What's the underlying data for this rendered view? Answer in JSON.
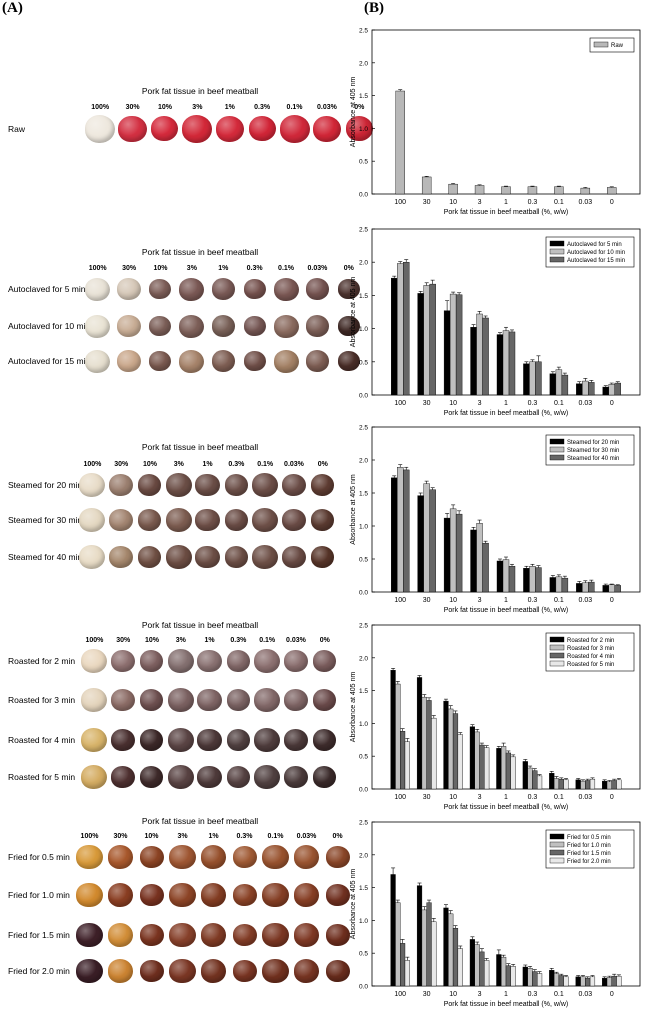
{
  "panel_a_label": "(A)",
  "panel_b_label": "(B)",
  "percent_labels": [
    "100%",
    "30%",
    "10%",
    "3%",
    "1%",
    "0.3%",
    "0.1%",
    "0.03%",
    "0%"
  ],
  "sections": [
    {
      "title": "Pork fat tissue in beef meatball",
      "rows": [
        {
          "label": "Raw",
          "colors": [
            "#eee8de",
            "#d33042",
            "#d52a3c",
            "#d22838",
            "#d42a3b",
            "#d12537",
            "#d0283a",
            "#d12637",
            "#cc2535"
          ]
        }
      ]
    },
    {
      "title": "Pork fat tissue in beef meatball",
      "rows": [
        {
          "label": "Autoclaved for 5 min",
          "colors": [
            "#e8e2d6",
            "#d6c8b8",
            "#7d5e58",
            "#7a5854",
            "#7a5a56",
            "#76524e",
            "#7a5753",
            "#755350",
            "#4e3430"
          ]
        },
        {
          "label": "Autoclaved for 10 min",
          "colors": [
            "#e9e3d4",
            "#c8ad95",
            "#7c5f58",
            "#7d5f58",
            "#786057",
            "#755653",
            "#8a6a5e",
            "#7a5d55",
            "#3e2824"
          ]
        },
        {
          "label": "Autoclaved for 15 min",
          "colors": [
            "#e6dfcf",
            "#caa88c",
            "#7b5a50",
            "#a6836a",
            "#7e5e53",
            "#715049",
            "#a38064",
            "#7d5d53",
            "#4a2e28"
          ]
        }
      ]
    },
    {
      "title": "Pork fat tissue in beef meatball",
      "rows": [
        {
          "label": "Steamed for 20 min",
          "colors": [
            "#e8dcc8",
            "#9c8070",
            "#6a4a42",
            "#6b4e46",
            "#6a4d46",
            "#6c4f48",
            "#6a4c45",
            "#6b4d47",
            "#5e3c32"
          ]
        },
        {
          "label": "Steamed for 30 min",
          "colors": [
            "#e4d8c2",
            "#a48672",
            "#7a5a4e",
            "#7c5c50",
            "#6e4f47",
            "#6a4c45",
            "#6e5048",
            "#6a4b45",
            "#5a3a30"
          ]
        },
        {
          "label": "Steamed for 40 min",
          "colors": [
            "#e8dcc6",
            "#a5876c",
            "#705044",
            "#6b4c42",
            "#6c4e45",
            "#6b4d44",
            "#6d4f46",
            "#684a43",
            "#563428"
          ]
        }
      ]
    },
    {
      "title": "Pork fat tissue in beef meatball",
      "rows": [
        {
          "label": "Roasted for 2 min",
          "colors": [
            "#ead8c0",
            "#8e7070",
            "#7e6060",
            "#847070",
            "#8a7272",
            "#826868",
            "#8c7070",
            "#8a6e6e",
            "#7a5c5c"
          ]
        },
        {
          "label": "Roasted for 3 min",
          "colors": [
            "#e4d4bc",
            "#8c6c66",
            "#6e5050",
            "#7a6060",
            "#7e6464",
            "#7a6262",
            "#826868",
            "#7e6464",
            "#6a4a4a"
          ]
        },
        {
          "label": "Roasted for 4 min",
          "colors": [
            "#d8b46a",
            "#4a3030",
            "#3c2828",
            "#5a4444",
            "#4c3838",
            "#504040",
            "#4e3c3c",
            "#4a3838",
            "#3e2c2c"
          ]
        },
        {
          "label": "Roasted for 5 min",
          "colors": [
            "#d4ac62",
            "#4e3030",
            "#3e2a2a",
            "#584242",
            "#4e3a3a",
            "#564242",
            "#504040",
            "#4a3a3a",
            "#3a2a2a"
          ]
        }
      ]
    },
    {
      "title": "Pork fat tissue in beef meatball",
      "rows": [
        {
          "label": "Fried for 0.5 min",
          "colors": [
            "#d89a3a",
            "#a8582c",
            "#8c4424",
            "#9e5632",
            "#96502c",
            "#a05a34",
            "#98522e",
            "#9a5430",
            "#8a4628"
          ]
        },
        {
          "label": "Fried for 1.0 min",
          "colors": [
            "#d28a2e",
            "#8a3e22",
            "#783220",
            "#8c4426",
            "#823c22",
            "#8a4226",
            "#843e24",
            "#863e24",
            "#703020"
          ]
        },
        {
          "label": "Fried for 1.5 min",
          "colors": [
            "#3e2028",
            "#d28e38",
            "#7a3420",
            "#86402a",
            "#7e3a24",
            "#823c26",
            "#7a3622",
            "#7e3824",
            "#6e2e1e"
          ]
        },
        {
          "label": "Fried for 2.0 min",
          "colors": [
            "#3a1e26",
            "#cc8432",
            "#6e2e1e",
            "#7a3624",
            "#723220",
            "#783422",
            "#70301e",
            "#763422",
            "#682c1c"
          ]
        }
      ]
    }
  ],
  "chart_data": [
    {
      "type": "bar",
      "ylabel": "Absorbance at 405 nm",
      "xlabel": "Pork fat tissue in beef meatball (%, w/w)",
      "categories": [
        "100",
        "30",
        "10",
        "3",
        "1",
        "0.3",
        "0.1",
        "0.03",
        "0"
      ],
      "ylim": [
        0,
        2.5
      ],
      "yticks": [
        "0.0",
        "0.5",
        "1.0",
        "1.5",
        "2.0",
        "2.5"
      ],
      "legend_position": "top-right",
      "series": [
        {
          "name": "Raw",
          "color": "#b8b8b8",
          "values": [
            1.57,
            0.26,
            0.15,
            0.13,
            0.11,
            0.11,
            0.11,
            0.09,
            0.1
          ],
          "errors": [
            0.02,
            0.01,
            0.01,
            0.01,
            0.01,
            0.01,
            0.01,
            0.01,
            0.01
          ]
        }
      ]
    },
    {
      "type": "bar",
      "ylabel": "Absorbance at 405 nm",
      "xlabel": "Pork fat tissue in beef meatball (%, w/w)",
      "categories": [
        "100",
        "30",
        "10",
        "3",
        "1",
        "0.3",
        "0.1",
        "0.03",
        "0"
      ],
      "ylim": [
        0,
        2.5
      ],
      "yticks": [
        "0.0",
        "0.5",
        "1.0",
        "1.5",
        "2.0",
        "2.5"
      ],
      "legend_position": "top-right",
      "series": [
        {
          "name": "Autoclaved for 5 min",
          "color": "#000000",
          "values": [
            1.76,
            1.53,
            1.27,
            1.02,
            0.91,
            0.47,
            0.32,
            0.17,
            0.12
          ],
          "errors": [
            0.03,
            0.03,
            0.15,
            0.04,
            0.03,
            0.03,
            0.03,
            0.03,
            0.02
          ]
        },
        {
          "name": "Autoclaved for 10 min",
          "color": "#c0c0c0",
          "values": [
            1.98,
            1.65,
            1.52,
            1.22,
            0.97,
            0.5,
            0.38,
            0.21,
            0.16
          ],
          "errors": [
            0.03,
            0.04,
            0.03,
            0.04,
            0.05,
            0.03,
            0.04,
            0.04,
            0.02
          ]
        },
        {
          "name": "Autoclaved for 15 min",
          "color": "#666666",
          "values": [
            2.0,
            1.67,
            1.51,
            1.16,
            0.95,
            0.5,
            0.3,
            0.19,
            0.18
          ],
          "errors": [
            0.04,
            0.06,
            0.03,
            0.03,
            0.03,
            0.09,
            0.03,
            0.03,
            0.02
          ]
        }
      ]
    },
    {
      "type": "bar",
      "ylabel": "Absorbance at 405 nm",
      "xlabel": "Pork fat tissue in beef meatball (%, w/w)",
      "categories": [
        "100",
        "30",
        "10",
        "3",
        "1",
        "0.3",
        "0.1",
        "0.03",
        "0"
      ],
      "ylim": [
        0,
        2.5
      ],
      "yticks": [
        "0.0",
        "0.5",
        "1.0",
        "1.5",
        "2.0",
        "2.5"
      ],
      "legend_position": "top-right",
      "series": [
        {
          "name": "Steamed for 20 min",
          "color": "#000000",
          "values": [
            1.73,
            1.46,
            1.12,
            0.94,
            0.47,
            0.36,
            0.22,
            0.13,
            0.1
          ],
          "errors": [
            0.03,
            0.04,
            0.07,
            0.04,
            0.03,
            0.03,
            0.03,
            0.03,
            0.02
          ]
        },
        {
          "name": "Steamed for 30 min",
          "color": "#c0c0c0",
          "values": [
            1.89,
            1.64,
            1.26,
            1.04,
            0.49,
            0.39,
            0.23,
            0.14,
            0.11
          ],
          "errors": [
            0.04,
            0.04,
            0.06,
            0.05,
            0.04,
            0.03,
            0.03,
            0.03,
            0.01
          ]
        },
        {
          "name": "Steamed for 40 min",
          "color": "#666666",
          "values": [
            1.85,
            1.55,
            1.18,
            0.74,
            0.39,
            0.37,
            0.21,
            0.15,
            0.1
          ],
          "errors": [
            0.04,
            0.03,
            0.05,
            0.03,
            0.03,
            0.03,
            0.03,
            0.03,
            0.01
          ]
        }
      ]
    },
    {
      "type": "bar",
      "ylabel": "Absorbance at 405 nm",
      "xlabel": "Pork fat tissue in beef meatball (%, w/w)",
      "categories": [
        "100",
        "30",
        "10",
        "3",
        "1",
        "0.3",
        "0.1",
        "0.03",
        "0"
      ],
      "ylim": [
        0,
        2.5
      ],
      "yticks": [
        "0.0",
        "0.5",
        "1.0",
        "1.5",
        "2.0",
        "2.5"
      ],
      "legend_position": "top-right",
      "series": [
        {
          "name": "Roasted for 2 min",
          "color": "#000000",
          "values": [
            1.81,
            1.7,
            1.34,
            0.95,
            0.62,
            0.42,
            0.24,
            0.14,
            0.12
          ],
          "errors": [
            0.03,
            0.03,
            0.03,
            0.03,
            0.03,
            0.03,
            0.03,
            0.02,
            0.02
          ]
        },
        {
          "name": "Roasted for 3 min",
          "color": "#c0c0c0",
          "values": [
            1.6,
            1.4,
            1.22,
            0.87,
            0.65,
            0.32,
            0.16,
            0.12,
            0.11
          ],
          "errors": [
            0.04,
            0.04,
            0.05,
            0.04,
            0.05,
            0.03,
            0.03,
            0.02,
            0.02
          ]
        },
        {
          "name": "Roasted for 4 min",
          "color": "#666666",
          "values": [
            0.88,
            1.35,
            1.15,
            0.67,
            0.55,
            0.28,
            0.15,
            0.13,
            0.13
          ],
          "errors": [
            0.04,
            0.04,
            0.04,
            0.03,
            0.03,
            0.03,
            0.02,
            0.02,
            0.02
          ]
        },
        {
          "name": "Roasted for 5 min",
          "color": "#e8e8e8",
          "values": [
            0.72,
            1.08,
            0.83,
            0.63,
            0.49,
            0.2,
            0.14,
            0.15,
            0.14
          ],
          "errors": [
            0.05,
            0.04,
            0.03,
            0.03,
            0.03,
            0.02,
            0.02,
            0.02,
            0.02
          ]
        }
      ]
    },
    {
      "type": "bar",
      "ylabel": "Absorbance at 405 nm",
      "xlabel": "Pork fat tissue in beef meatball (%, w/w)",
      "categories": [
        "100",
        "30",
        "10",
        "3",
        "1",
        "0.3",
        "0.1",
        "0.03",
        "0"
      ],
      "ylim": [
        0,
        2.5
      ],
      "yticks": [
        "0.0",
        "0.5",
        "1.0",
        "1.5",
        "2.0",
        "2.5"
      ],
      "legend_position": "top-right",
      "series": [
        {
          "name": "Fried for 0.5 min",
          "color": "#000000",
          "values": [
            1.7,
            1.53,
            1.19,
            0.71,
            0.48,
            0.29,
            0.24,
            0.14,
            0.12
          ],
          "errors": [
            0.1,
            0.04,
            0.05,
            0.04,
            0.07,
            0.03,
            0.03,
            0.02,
            0.02
          ]
        },
        {
          "name": "Fried for 1.0 min",
          "color": "#c0c0c0",
          "values": [
            1.27,
            1.16,
            1.1,
            0.63,
            0.44,
            0.27,
            0.19,
            0.14,
            0.13
          ],
          "errors": [
            0.04,
            0.05,
            0.05,
            0.04,
            0.03,
            0.03,
            0.02,
            0.02,
            0.02
          ]
        },
        {
          "name": "Fried for 1.5 min",
          "color": "#666666",
          "values": [
            0.65,
            1.27,
            0.88,
            0.52,
            0.31,
            0.22,
            0.16,
            0.12,
            0.15
          ],
          "errors": [
            0.06,
            0.04,
            0.04,
            0.05,
            0.03,
            0.03,
            0.02,
            0.02,
            0.03
          ]
        },
        {
          "name": "Fried for 2.0 min",
          "color": "#e8e8e8",
          "values": [
            0.39,
            0.98,
            0.57,
            0.39,
            0.3,
            0.19,
            0.14,
            0.14,
            0.15
          ],
          "errors": [
            0.05,
            0.05,
            0.04,
            0.03,
            0.03,
            0.03,
            0.02,
            0.02,
            0.02
          ]
        }
      ]
    }
  ]
}
